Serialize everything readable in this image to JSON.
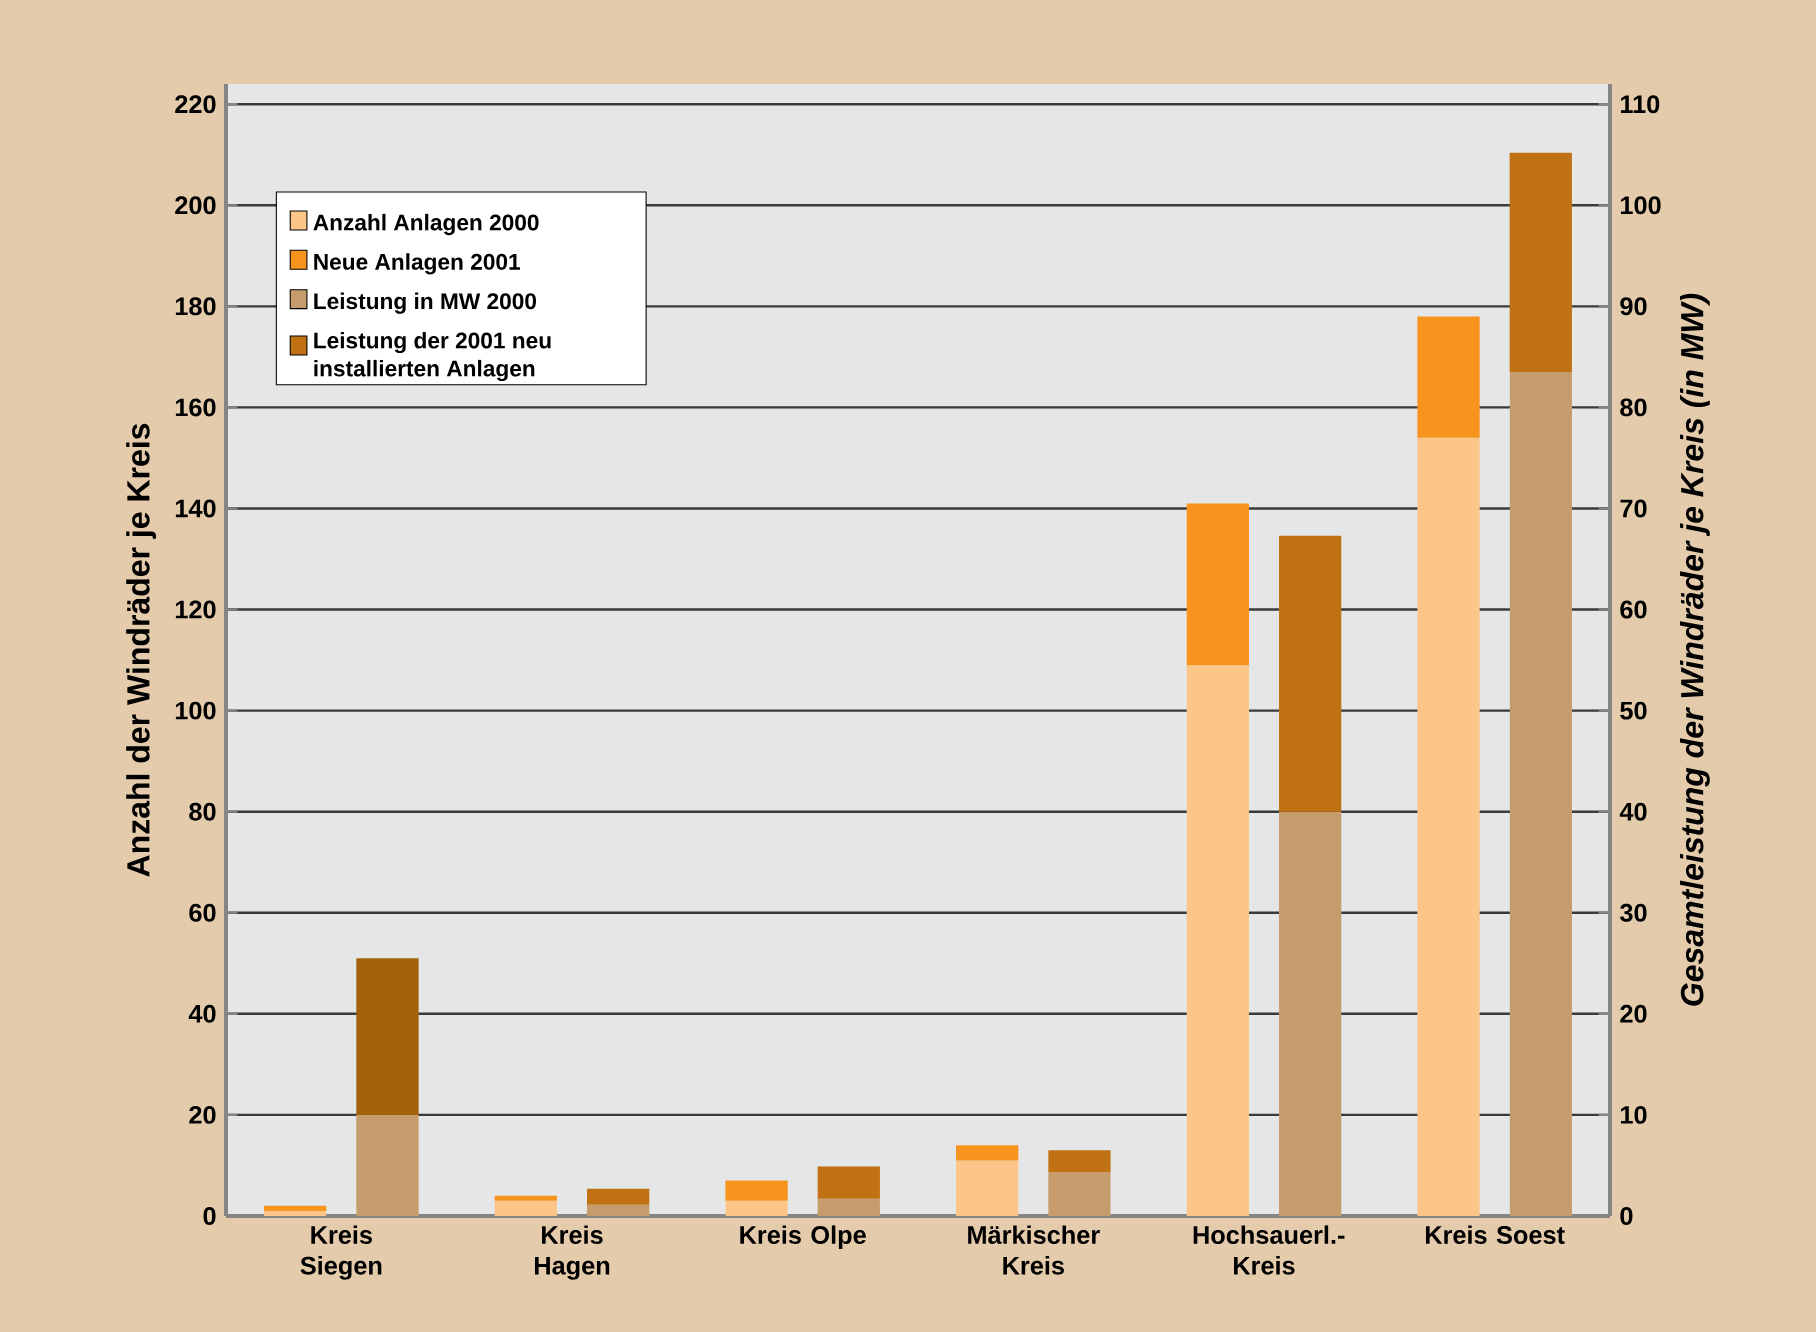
{
  "chart_data": {
    "type": "bar",
    "stacked": true,
    "categories": [
      "Kreis Siegen",
      "Kreis Hagen",
      "Kreis Olpe",
      "Märkischer Kreis",
      "Hochsauerl.-Kreis",
      "Kreis Soest"
    ],
    "series": [
      {
        "name": "Anzahl Anlagen 2000",
        "color": "#fbc688",
        "values": [
          1,
          3,
          3,
          11,
          109,
          154
        ]
      },
      {
        "name": "Neue Anlagen 2001",
        "color": "#f7941d",
        "values": [
          1,
          1,
          4,
          3,
          32,
          24
        ]
      },
      {
        "name": "Leistung in MW 2000",
        "color": "#c69c6d",
        "axis": "y2",
        "values": [
          10,
          1.1,
          1.7,
          4.3,
          40,
          83.5
        ]
      },
      {
        "name": "Leistung der 2001 neu installierten Anlagen",
        "color": "#c07114",
        "colors": [
          "#a3620a",
          "#c07114",
          "#c07114",
          "#c07114",
          "#c07114",
          "#c07114"
        ],
        "axis": "y2",
        "values": [
          15.5,
          1.6,
          3.2,
          2.2,
          27.3,
          21.7
        ]
      }
    ],
    "ylabel": "Anzahl der Windräder je Kreis",
    "y2label": "Gesamtleistung der Windräder je Kreis (in MW)",
    "ylim": [
      0,
      224
    ],
    "yticks": [
      0,
      20,
      40,
      60,
      80,
      100,
      120,
      140,
      160,
      180,
      200,
      220
    ],
    "y2lim": [
      0,
      112
    ],
    "y2ticks": [
      0,
      10,
      20,
      30,
      40,
      50,
      60,
      70,
      80,
      90,
      100,
      110
    ],
    "grid": "y",
    "legend": "top left"
  }
}
